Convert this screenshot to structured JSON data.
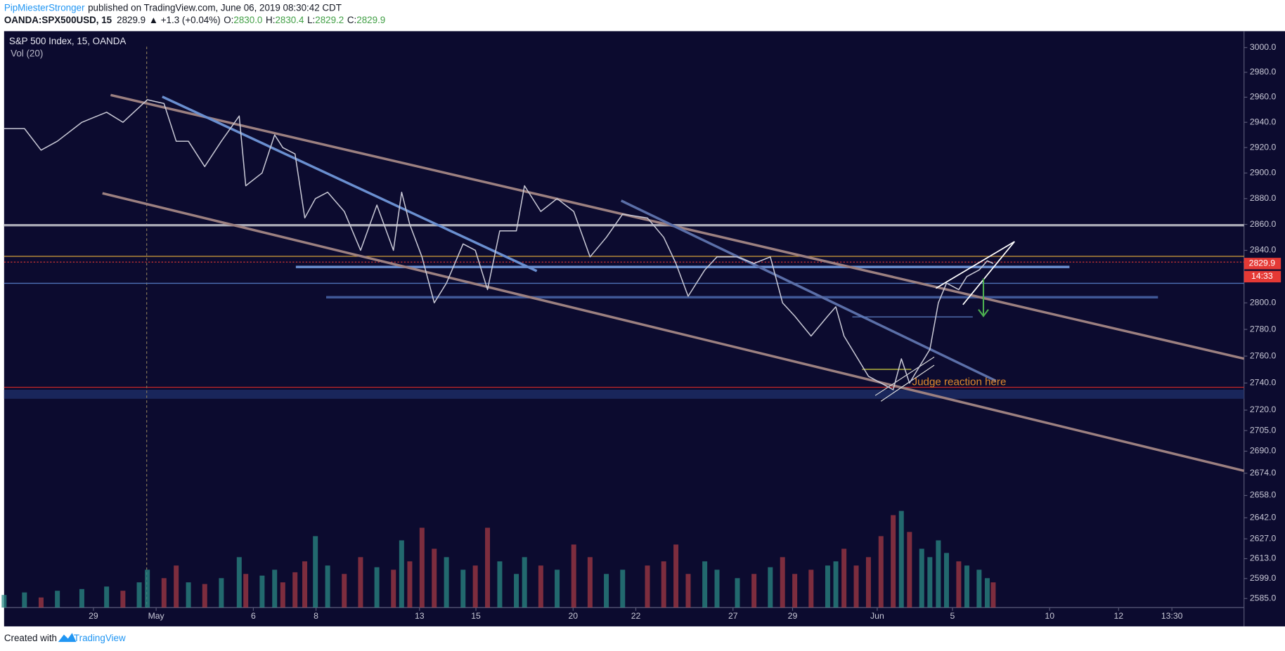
{
  "header": {
    "author": "PipMiesterStronger",
    "published": "published on TradingView.com, June 06, 2019 08:30:42 CDT",
    "symbol": "OANDA:SPX500USD, 15",
    "last": "2829.9",
    "change": "▲ +1.3 (+0.04%)",
    "open_label": "O:",
    "open": "2830.0",
    "high_label": "H:",
    "high": "2830.4",
    "low_label": "L:",
    "low": "2829.2",
    "close_label": "C:",
    "close": "2829.9"
  },
  "footer": {
    "created": "Created with",
    "brand": "TradingView"
  },
  "chart_data": {
    "type": "line",
    "title": "S&P 500 Index, 15, OANDA",
    "subtitle": "Vol (20)",
    "color": "#c9c9d6",
    "log": true,
    "x": [
      -2.85,
      -2.2,
      -1.67,
      -1.15,
      -0.37,
      0.42,
      0.94,
      1.46,
      1.72,
      2.25,
      2.64,
      3.03,
      3.55,
      4.08,
      4.65,
      4.86,
      5.38,
      5.78,
      6.04,
      6.43,
      6.74,
      7.08,
      7.47,
      8.0,
      8.52,
      9.04,
      9.57,
      9.83,
      10.09,
      10.48,
      10.87,
      11.26,
      11.79,
      12.18,
      12.57,
      12.96,
      13.49,
      13.75,
      14.27,
      14.79,
      15.32,
      15.84,
      16.36,
      16.88,
      17.67,
      18.19,
      18.58,
      18.97,
      19.5,
      19.89,
      20.54,
      21.07,
      21.59,
      21.98,
      22.37,
      22.89,
      23.42,
      23.68,
      23.94,
      24.33,
      24.72,
      25.12,
      25.51,
      25.77,
      26.03,
      26.42,
      26.68,
      26.95,
      27.21,
      27.6,
      27.86,
      28.25,
      28.51,
      28.7
    ],
    "values": [
      2935,
      2935,
      2918,
      2925,
      2940,
      2948,
      2940,
      2952,
      2958,
      2955,
      2925,
      2925,
      2905,
      2925,
      2945,
      2890,
      2900,
      2930,
      2920,
      2915,
      2865,
      2880,
      2885,
      2870,
      2840,
      2875,
      2840,
      2885,
      2860,
      2835,
      2800,
      2815,
      2845,
      2840,
      2810,
      2855,
      2855,
      2890,
      2870,
      2880,
      2870,
      2835,
      2850,
      2868,
      2865,
      2850,
      2830,
      2805,
      2825,
      2835,
      2835,
      2830,
      2835,
      2800,
      2790,
      2775,
      2790,
      2797,
      2775,
      2760,
      2745,
      2740,
      2735,
      2758,
      2740,
      2755,
      2765,
      2800,
      2815,
      2810,
      2820,
      2825,
      2832,
      2830
    ],
    "volume": [
      15,
      18,
      12,
      20,
      22,
      25,
      20,
      30,
      45,
      35,
      50,
      30,
      28,
      35,
      60,
      40,
      38,
      45,
      30,
      42,
      55,
      85,
      50,
      40,
      60,
      48,
      45,
      80,
      55,
      95,
      70,
      60,
      45,
      50,
      95,
      55,
      40,
      60,
      50,
      45,
      75,
      60,
      40,
      45,
      50,
      55,
      75,
      40,
      55,
      45,
      35,
      40,
      48,
      60,
      40,
      45,
      50,
      55,
      70,
      50,
      60,
      85,
      110,
      115,
      90,
      70,
      60,
      80,
      65,
      55,
      50,
      45,
      35,
      30
    ],
    "xlim": [
      -2.85,
      36.7
    ],
    "xticks": [
      {
        "value": 0,
        "label": "29"
      },
      {
        "value": 2.0,
        "label": "May"
      },
      {
        "value": 5.1,
        "label": "6"
      },
      {
        "value": 7.1,
        "label": "8"
      },
      {
        "value": 10.4,
        "label": "13"
      },
      {
        "value": 12.2,
        "label": "15"
      },
      {
        "value": 15.3,
        "label": "20"
      },
      {
        "value": 17.3,
        "label": "22"
      },
      {
        "value": 20.4,
        "label": "27"
      },
      {
        "value": 22.3,
        "label": "29"
      },
      {
        "value": 25.0,
        "label": "Jun"
      },
      {
        "value": 27.4,
        "label": "5"
      },
      {
        "value": 30.5,
        "label": "10"
      },
      {
        "value": 32.7,
        "label": "12"
      },
      {
        "value": 34.4,
        "label": "13:30"
      }
    ],
    "ylim": [
      2578.7,
      3013.3
    ],
    "yticks": [
      {
        "value": 3000,
        "label": "3000.0"
      },
      {
        "value": 2980,
        "label": "2980.0"
      },
      {
        "value": 2960,
        "label": "2960.0"
      },
      {
        "value": 2940,
        "label": "2940.0"
      },
      {
        "value": 2920,
        "label": "2920.0"
      },
      {
        "value": 2900,
        "label": "2900.0"
      },
      {
        "value": 2880,
        "label": "2880.0"
      },
      {
        "value": 2860,
        "label": "2860.0"
      },
      {
        "value": 2840,
        "label": "2840.0"
      },
      {
        "value": 2800,
        "label": "2800.0"
      },
      {
        "value": 2780,
        "label": "2780.0"
      },
      {
        "value": 2760,
        "label": "2760.0"
      },
      {
        "value": 2740,
        "label": "2740.0"
      },
      {
        "value": 2720,
        "label": "2720.0"
      },
      {
        "value": 2705,
        "label": "2705.0"
      },
      {
        "value": 2690,
        "label": "2690.0"
      },
      {
        "value": 2674,
        "label": "2674.0"
      },
      {
        "value": 2658,
        "label": "2658.0"
      },
      {
        "value": 2642,
        "label": "2642.0"
      },
      {
        "value": 2627,
        "label": "2627.0"
      },
      {
        "value": 2613,
        "label": "2613.0"
      },
      {
        "value": 2599,
        "label": "2599.0"
      },
      {
        "value": 2585,
        "label": "2585.0"
      }
    ],
    "last_price": 2829.9,
    "countdown": "14:33",
    "annotation": "Judge reaction here"
  }
}
